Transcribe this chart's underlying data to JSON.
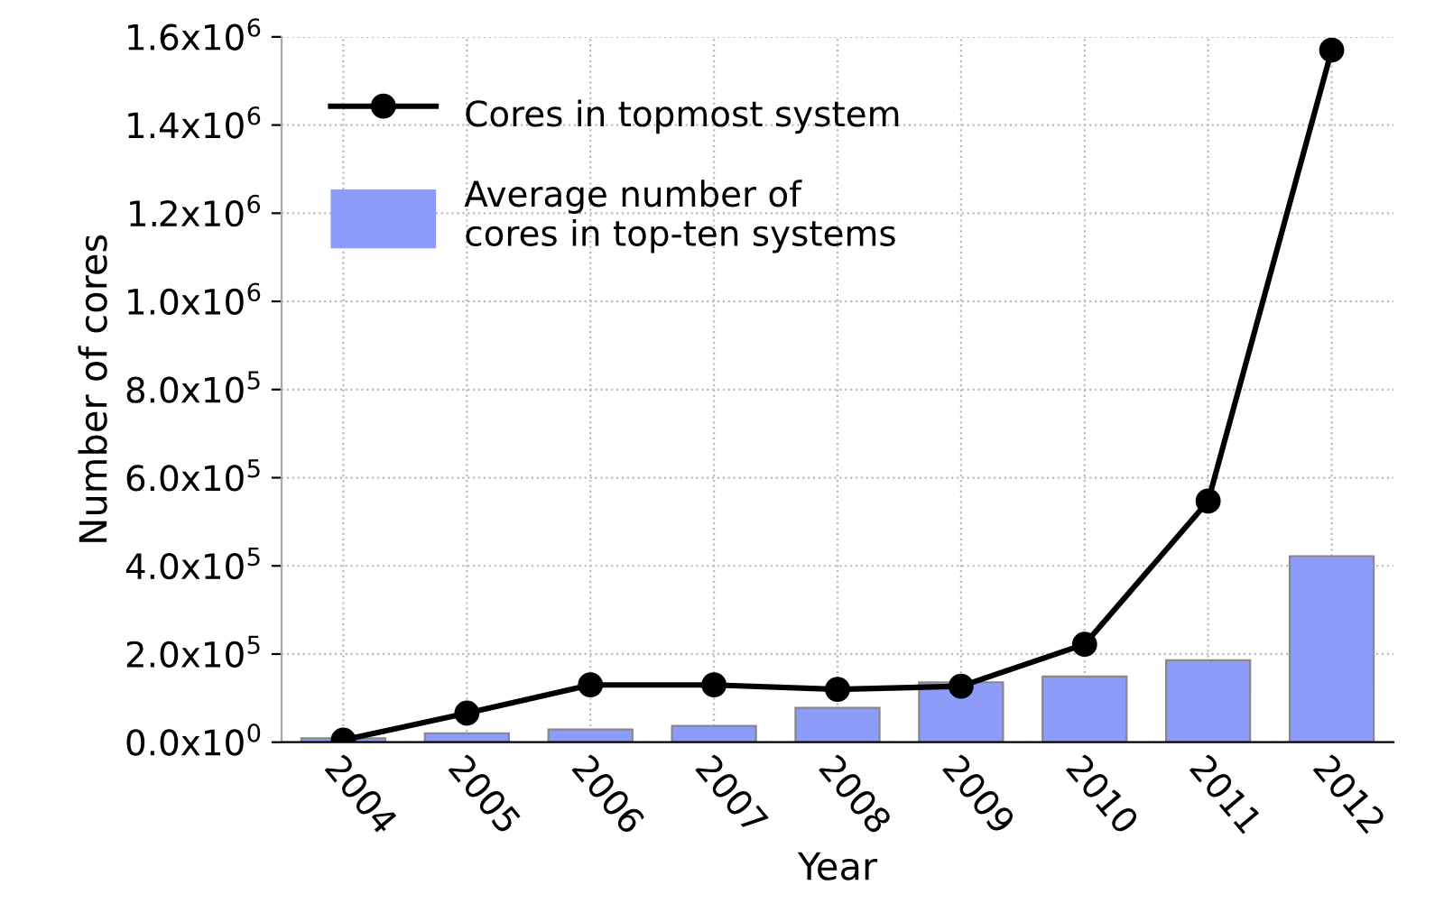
{
  "chart_data": {
    "type": "bar",
    "xlabel": "Year",
    "ylabel": "Number of cores",
    "categories": [
      "2004",
      "2005",
      "2006",
      "2007",
      "2008",
      "2009",
      "2010",
      "2011",
      "2012"
    ],
    "series": [
      {
        "name": "Cores in topmost system",
        "type": "line",
        "color": "#000000",
        "marker": "circle",
        "line_style": "solid",
        "values": [
          5000,
          66000,
          130000,
          130000,
          120000,
          127000,
          222000,
          547000,
          1570000
        ]
      },
      {
        "name": "Average number of\ncores in top-ten systems",
        "color": "#8c9cf8",
        "values": [
          9000,
          20000,
          29000,
          37000,
          78000,
          136000,
          149000,
          186000,
          422000
        ]
      }
    ],
    "ylim": [
      0,
      1600000
    ],
    "yticks": [
      {
        "value": 0,
        "label": "0.0x10$^{0}$"
      },
      {
        "value": 200000,
        "label": "2.0x10$^{5}$"
      },
      {
        "value": 400000,
        "label": "4.0x10$^{5}$"
      },
      {
        "value": 600000,
        "label": "6.0x10$^{5}$"
      },
      {
        "value": 800000,
        "label": "8.0x10$^{5}$"
      },
      {
        "value": 1000000,
        "label": "1.0x10$^{6}$"
      },
      {
        "value": 1200000,
        "label": "1.2x10$^{6}$"
      },
      {
        "value": 1400000,
        "label": "1.4x10$^{6}$"
      },
      {
        "value": 1600000,
        "label": "1.6x10$^{6}$"
      }
    ],
    "grid": true,
    "legend": "top left"
  }
}
